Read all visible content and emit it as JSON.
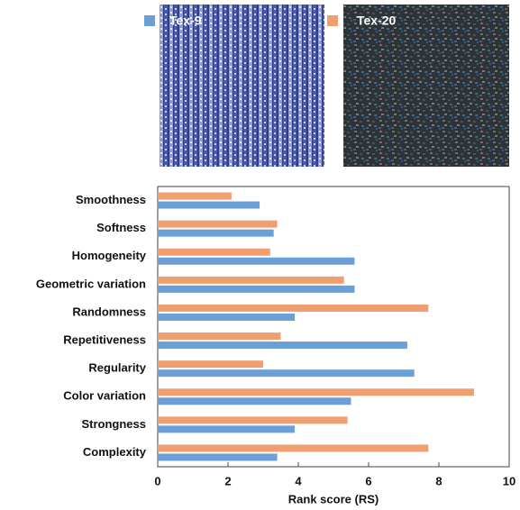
{
  "chart_data": {
    "type": "barh",
    "xlabel": "Rank score (RS)",
    "categories": [
      "Smoothness",
      "Softness",
      "Homogeneity",
      "Geometric variation",
      "Randomness",
      "Repetitiveness",
      "Regularity",
      "Color variation",
      "Strongness",
      "Complexity"
    ],
    "series": [
      {
        "name": "Tex-9",
        "color": "#6b9fd8",
        "values": [
          2.9,
          3.3,
          5.6,
          5.6,
          3.9,
          7.1,
          7.3,
          5.5,
          3.9,
          3.4
        ]
      },
      {
        "name": "Tex-20",
        "color": "#f0a070",
        "values": [
          2.1,
          3.4,
          3.2,
          5.3,
          7.7,
          3.5,
          3.0,
          9.0,
          5.4,
          7.7
        ]
      }
    ],
    "xlim": [
      0,
      10
    ],
    "xticks": [
      0,
      2,
      4,
      6,
      8,
      10
    ],
    "grid": false
  }
}
